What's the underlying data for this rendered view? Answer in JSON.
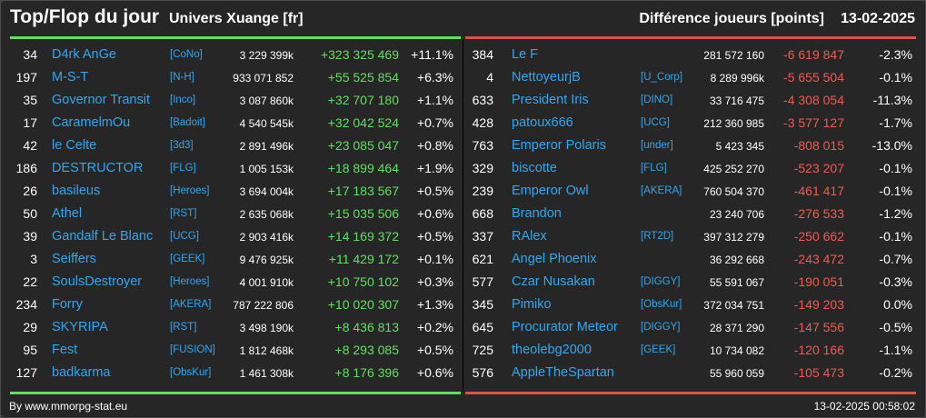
{
  "header": {
    "title": "Top/Flop du jour",
    "subtitle": "Univers Xuange [fr]",
    "metric": "Différence joueurs [points]",
    "date": "13-02-2025"
  },
  "colors": {
    "up": "#5fe05f",
    "down": "#f05a50",
    "link": "#2ea8f0",
    "background": "#262626"
  },
  "top": [
    {
      "rank": "34",
      "name": "D4rk AnGe",
      "alliance": "[CoNo]",
      "points": "3 229 399k",
      "delta": "+323 325 469",
      "pct": "+11.1%"
    },
    {
      "rank": "197",
      "name": "M-S-T",
      "alliance": "[N-H]",
      "points": "933 071 852",
      "delta": "+55 525 854",
      "pct": "+6.3%"
    },
    {
      "rank": "35",
      "name": "Governor Transit",
      "alliance": "[Inco]",
      "points": "3 087 860k",
      "delta": "+32 707 180",
      "pct": "+1.1%"
    },
    {
      "rank": "17",
      "name": "CaramelmOu",
      "alliance": "[Badoit]",
      "points": "4 540 545k",
      "delta": "+32 042 524",
      "pct": "+0.7%"
    },
    {
      "rank": "42",
      "name": "le Celte",
      "alliance": "[3d3]",
      "points": "2 891 496k",
      "delta": "+23 085 047",
      "pct": "+0.8%"
    },
    {
      "rank": "186",
      "name": "DESTRUCTOR",
      "alliance": "[FLG]",
      "points": "1 005 153k",
      "delta": "+18 899 464",
      "pct": "+1.9%"
    },
    {
      "rank": "26",
      "name": "basileus",
      "alliance": "[Heroes]",
      "points": "3 694 004k",
      "delta": "+17 183 567",
      "pct": "+0.5%"
    },
    {
      "rank": "50",
      "name": "Athel",
      "alliance": "[RST]",
      "points": "2 635 068k",
      "delta": "+15 035 506",
      "pct": "+0.6%"
    },
    {
      "rank": "39",
      "name": "Gandalf Le Blanc",
      "alliance": "[UCG]",
      "points": "2 903 416k",
      "delta": "+14 169 372",
      "pct": "+0.5%"
    },
    {
      "rank": "3",
      "name": "Seiffers",
      "alliance": "[GEEK]",
      "points": "9 476 925k",
      "delta": "+11 429 172",
      "pct": "+0.1%"
    },
    {
      "rank": "22",
      "name": "SoulsDestroyer",
      "alliance": "[Heroes]",
      "points": "4 001 910k",
      "delta": "+10 750 102",
      "pct": "+0.3%"
    },
    {
      "rank": "234",
      "name": "Forry",
      "alliance": "[AKERA]",
      "points": "787 222 806",
      "delta": "+10 020 307",
      "pct": "+1.3%"
    },
    {
      "rank": "29",
      "name": "SKYRIPA",
      "alliance": "[RST]",
      "points": "3 498 190k",
      "delta": "+8 436 813",
      "pct": "+0.2%"
    },
    {
      "rank": "95",
      "name": "Fest",
      "alliance": "[FUSION]",
      "points": "1 812 468k",
      "delta": "+8 293 085",
      "pct": "+0.5%"
    },
    {
      "rank": "127",
      "name": "badkarma",
      "alliance": "[ObsKur]",
      "points": "1 461 308k",
      "delta": "+8 176 396",
      "pct": "+0.6%"
    }
  ],
  "flop": [
    {
      "rank": "384",
      "name": "Le F",
      "alliance": "",
      "points": "281 572 160",
      "delta": "-6 619 847",
      "pct": "-2.3%"
    },
    {
      "rank": "4",
      "name": "NettoyeurjB",
      "alliance": "[U_Corp]",
      "points": "8 289 996k",
      "delta": "-5 655 504",
      "pct": "-0.1%"
    },
    {
      "rank": "633",
      "name": "President Iris",
      "alliance": "[DINO]",
      "points": "33 716 475",
      "delta": "-4 308 054",
      "pct": "-11.3%"
    },
    {
      "rank": "428",
      "name": "patoux666",
      "alliance": "[UCG]",
      "points": "212 360 985",
      "delta": "-3 577 127",
      "pct": "-1.7%"
    },
    {
      "rank": "763",
      "name": "Emperor Polaris",
      "alliance": "[under]",
      "points": "5 423 345",
      "delta": "-808 015",
      "pct": "-13.0%"
    },
    {
      "rank": "329",
      "name": "biscotte",
      "alliance": "[FLG]",
      "points": "425 252 270",
      "delta": "-523 207",
      "pct": "-0.1%"
    },
    {
      "rank": "239",
      "name": "Emperor Owl",
      "alliance": "[AKERA]",
      "points": "760 504 370",
      "delta": "-461 417",
      "pct": "-0.1%"
    },
    {
      "rank": "668",
      "name": "Brandon",
      "alliance": "",
      "points": "23 240 706",
      "delta": "-276 533",
      "pct": "-1.2%"
    },
    {
      "rank": "337",
      "name": "RAlex",
      "alliance": "[RT2D]",
      "points": "397 312 279",
      "delta": "-250 662",
      "pct": "-0.1%"
    },
    {
      "rank": "621",
      "name": "Angel Phoenix",
      "alliance": "",
      "points": "36 292 668",
      "delta": "-243 472",
      "pct": "-0.7%"
    },
    {
      "rank": "577",
      "name": "Czar Nusakan",
      "alliance": "[DIGGY]",
      "points": "55 591 067",
      "delta": "-190 051",
      "pct": "-0.3%"
    },
    {
      "rank": "345",
      "name": "Pimiko",
      "alliance": "[ObsKur]",
      "points": "372 034 751",
      "delta": "-149 203",
      "pct": "0.0%"
    },
    {
      "rank": "645",
      "name": "Procurator Meteor",
      "alliance": "[DIGGY]",
      "points": "28 371 290",
      "delta": "-147 556",
      "pct": "-0.5%"
    },
    {
      "rank": "725",
      "name": "theolebg2000",
      "alliance": "[GEEK]",
      "points": "10 734 082",
      "delta": "-120 166",
      "pct": "-1.1%"
    },
    {
      "rank": "576",
      "name": "AppleTheSpartan",
      "alliance": "",
      "points": "55 960 059",
      "delta": "-105 473",
      "pct": "-0.2%"
    }
  ],
  "footer": {
    "credit": "By www.mmorpg-stat.eu",
    "timestamp": "13-02-2025 00:58:02"
  }
}
